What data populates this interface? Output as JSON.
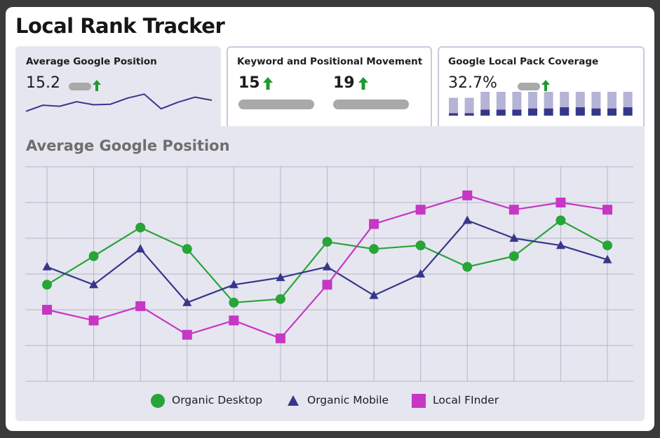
{
  "title": "Local Rank Tracker",
  "cards": [
    {
      "title": "Average Google Position",
      "value": "15.2"
    },
    {
      "title": "Keyword and Positional Movement",
      "value_a": "15",
      "value_b": "19"
    },
    {
      "title": "Google Local Pack Coverage",
      "value": "32.7%"
    }
  ],
  "colors": {
    "organic_desktop": "#27a536",
    "organic_mobile": "#36378a",
    "local_finder": "#c637c3",
    "arrow_up": "#1f9a2e",
    "grid": "#b7b6c8"
  },
  "chart_data": [
    {
      "type": "line",
      "title": "Average Google Position",
      "grid": true,
      "legend_position": "bottom",
      "x": [
        1,
        2,
        3,
        4,
        5,
        6,
        7,
        8,
        9,
        10,
        11,
        12,
        13
      ],
      "ylim": [
        0,
        6
      ],
      "series": [
        {
          "name": "Organic Desktop",
          "marker": "circle",
          "values": [
            2.7,
            3.5,
            4.3,
            3.7,
            2.2,
            2.3,
            3.9,
            3.7,
            3.8,
            3.2,
            3.5,
            4.5,
            3.8
          ]
        },
        {
          "name": "Organic Mobile",
          "marker": "triangle",
          "values": [
            3.2,
            2.7,
            3.7,
            2.2,
            2.7,
            2.9,
            3.2,
            2.4,
            3.0,
            4.5,
            4.0,
            3.8,
            3.4
          ]
        },
        {
          "name": "Local FInder",
          "marker": "square",
          "values": [
            2.0,
            1.7,
            2.1,
            1.3,
            1.7,
            1.2,
            2.7,
            4.4,
            4.8,
            5.2,
            4.8,
            5.0,
            4.8
          ]
        }
      ]
    },
    {
      "type": "line",
      "x": [
        1,
        2,
        3,
        4,
        5,
        6,
        7,
        8,
        9,
        10,
        11,
        12
      ],
      "values": [
        1.0,
        2.2,
        2.0,
        2.9,
        2.3,
        2.4,
        3.6,
        4.4,
        1.5,
        2.8,
        3.8,
        3.2
      ]
    },
    {
      "type": "bar",
      "x": [
        1,
        2,
        3,
        4,
        5,
        6,
        7,
        8,
        9,
        10,
        11,
        12
      ],
      "series": [
        {
          "values": [
            15,
            15,
            20,
            20,
            20,
            20,
            20,
            20,
            20,
            20,
            20,
            20
          ]
        },
        {
          "values": [
            2,
            2,
            5,
            5,
            5,
            6,
            6,
            7,
            7,
            6,
            6,
            7
          ]
        }
      ],
      "ylim": [
        0,
        20
      ]
    }
  ]
}
